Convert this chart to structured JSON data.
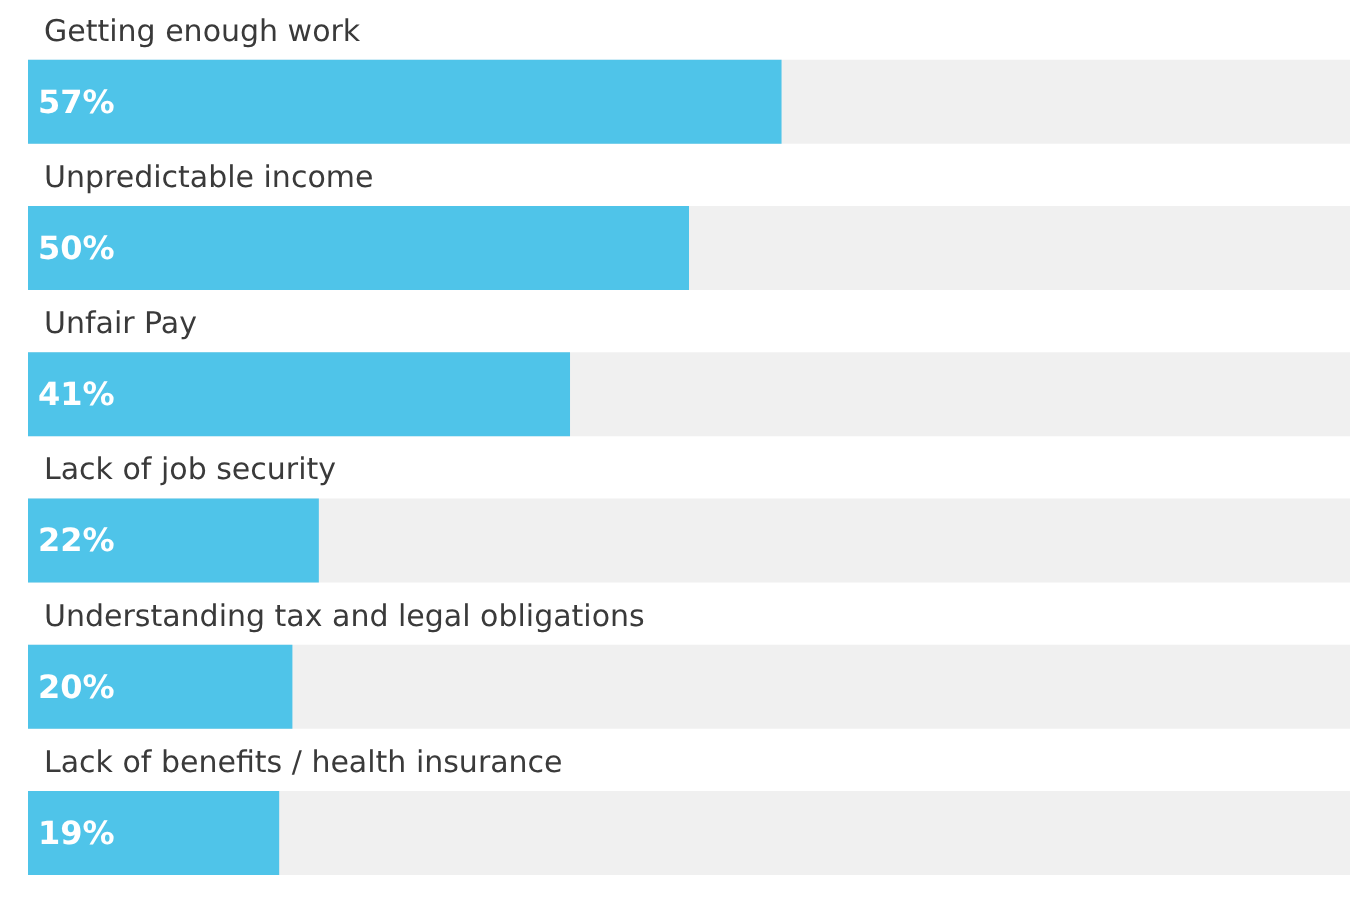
{
  "chart_data": {
    "type": "bar",
    "orientation": "horizontal",
    "categories": [
      "Getting enough work",
      "Unpredictable income",
      "Unfair Pay",
      "Lack of job security",
      "Understanding tax and legal obligations",
      "Lack of benefits / health insurance"
    ],
    "values": [
      57,
      50,
      41,
      22,
      20,
      19
    ],
    "value_labels": [
      "57%",
      "50%",
      "41%",
      "22%",
      "20%",
      "19%"
    ],
    "color": "#4fc4e9",
    "xlim": [
      0,
      100
    ],
    "tick_labels": "y"
  }
}
